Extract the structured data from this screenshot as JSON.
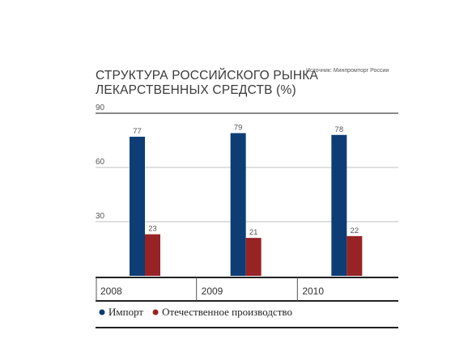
{
  "chart_data": {
    "type": "bar",
    "title_lines": [
      "СТРУКТУРА РОССИЙСКОГО РЫНКА",
      "ЛЕКАРСТВЕННЫХ СРЕДСТВ (%)"
    ],
    "source": "Источник: Минпромторг России",
    "categories": [
      "2008",
      "2009",
      "2010"
    ],
    "series": [
      {
        "name": "Импорт",
        "values": [
          77,
          79,
          78
        ],
        "color": "#0d3d74"
      },
      {
        "name": "Отечественное производство",
        "values": [
          23,
          21,
          22
        ],
        "color": "#982325"
      }
    ],
    "ylim": [
      0,
      90
    ],
    "yticks": [
      30,
      60,
      90
    ],
    "grid": true,
    "legend_position": "bottom-left"
  }
}
